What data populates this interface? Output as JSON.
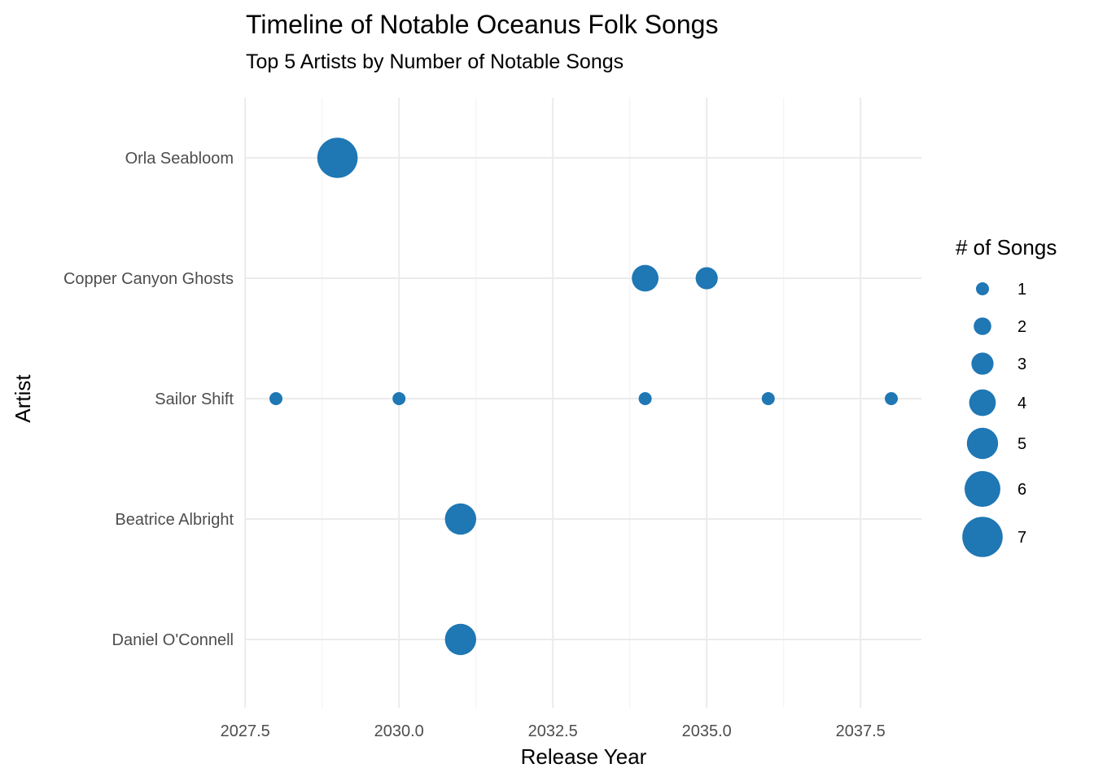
{
  "chart_data": {
    "type": "scatter",
    "title": "Timeline of Notable Oceanus Folk Songs",
    "subtitle": "Top 5 Artists by Number of Notable Songs",
    "xlabel": "Release Year",
    "ylabel": "Artist",
    "xlim": [
      2027.5,
      2038.5
    ],
    "x_ticks": [
      2027.5,
      2030.0,
      2032.5,
      2035.0,
      2037.5
    ],
    "x_tick_labels": [
      "2027.5",
      "2030.0",
      "2032.5",
      "2035.0",
      "2037.5"
    ],
    "categories": [
      "Orla Seabloom",
      "Copper Canyon Ghosts",
      "Sailor Shift",
      "Beatrice Albright",
      "Daniel O'Connell"
    ],
    "grid": true,
    "point_color": "#1F77B4",
    "points": [
      {
        "artist": "Orla Seabloom",
        "x": 2029,
        "songs": 7
      },
      {
        "artist": "Copper Canyon Ghosts",
        "x": 2034,
        "songs": 4
      },
      {
        "artist": "Copper Canyon Ghosts",
        "x": 2035,
        "songs": 3
      },
      {
        "artist": "Sailor Shift",
        "x": 2028,
        "songs": 1
      },
      {
        "artist": "Sailor Shift",
        "x": 2030,
        "songs": 1
      },
      {
        "artist": "Sailor Shift",
        "x": 2034,
        "songs": 1
      },
      {
        "artist": "Sailor Shift",
        "x": 2036,
        "songs": 1
      },
      {
        "artist": "Sailor Shift",
        "x": 2038,
        "songs": 1
      },
      {
        "artist": "Beatrice Albright",
        "x": 2031,
        "songs": 5
      },
      {
        "artist": "Daniel O'Connell",
        "x": 2031,
        "songs": 5
      }
    ],
    "legend": {
      "title": "# of Songs",
      "placement": "right",
      "entries": [
        {
          "label": "1",
          "songs": 1
        },
        {
          "label": "2",
          "songs": 2
        },
        {
          "label": "3",
          "songs": 3
        },
        {
          "label": "4",
          "songs": 4
        },
        {
          "label": "5",
          "songs": 5
        },
        {
          "label": "6",
          "songs": 6
        },
        {
          "label": "7",
          "songs": 7
        }
      ]
    }
  }
}
